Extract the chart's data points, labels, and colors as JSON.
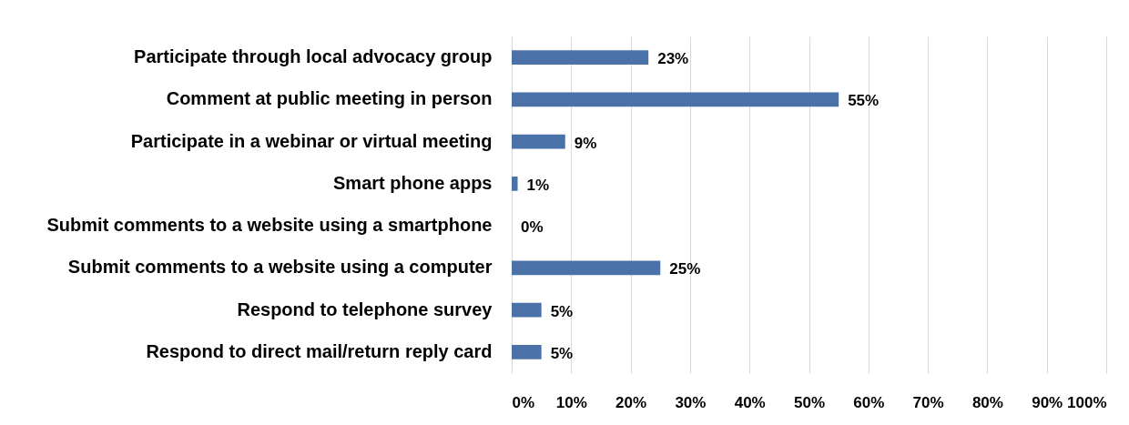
{
  "chart_data": {
    "type": "bar",
    "orientation": "horizontal",
    "categories": [
      "Participate through local advocacy group",
      "Comment at public meeting in person",
      "Participate in a webinar or virtual meeting",
      "Smart phone apps",
      "Submit comments to a website using a smartphone",
      "Submit comments to a website using a computer",
      "Respond to telephone survey",
      "Respond to direct mail/return reply card"
    ],
    "values": [
      23,
      55,
      9,
      1,
      0,
      25,
      5,
      5
    ],
    "value_labels": [
      "23%",
      "55%",
      "9%",
      "1%",
      "0%",
      "25%",
      "5%",
      "5%"
    ],
    "color": "#4a72a8",
    "xlim": [
      0,
      100
    ],
    "xticks": [
      {
        "value": 0,
        "label": "0%"
      },
      {
        "value": 10,
        "label": "10%"
      },
      {
        "value": 20,
        "label": "20%"
      },
      {
        "value": 30,
        "label": "30%"
      },
      {
        "value": 40,
        "label": "40%"
      },
      {
        "value": 50,
        "label": "50%"
      },
      {
        "value": 60,
        "label": "60%"
      },
      {
        "value": 70,
        "label": "70%"
      },
      {
        "value": 80,
        "label": "80%"
      },
      {
        "value": 90,
        "label": "90%"
      },
      {
        "value": 100,
        "label": "100%"
      }
    ],
    "grid": "x"
  }
}
